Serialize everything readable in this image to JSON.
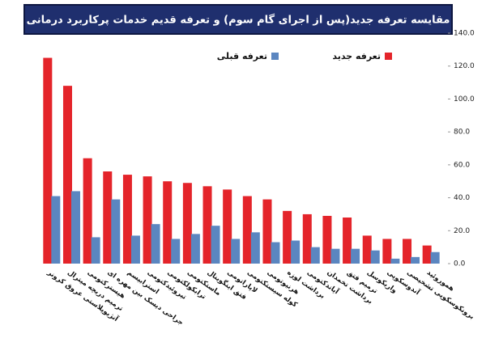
{
  "chart_data": {
    "type": "bar",
    "title": "مقایسه تعرفه جدید(پس از اجرای گام سوم) و تعرفه قدیم خدمات پرکاربرد درمانی",
    "categories": [
      "آنژیوپلاستی عروق کرونر",
      "ترمیم دریچه میترال",
      "هیسترکتومی",
      "جراحی دیسک بین مهره ای",
      "استرابیسم",
      "تیروئیدکتومی",
      "ترابکولکتومی",
      "ماستکتومی",
      "فتق اینگوینال",
      "لاپاراتومی",
      "کوله سیستکتومی",
      "هرنیوتومی",
      "برداشت لوزه",
      "آپاندکتومی",
      "برداشت تخمدان",
      "ترمیم فتق",
      "واریکوسل",
      "آندوسکوپی",
      "برونکوسکوپی تشخیصی",
      "هموروئید"
    ],
    "series": [
      {
        "name": "تعرفه جدید",
        "color": "#e4242a",
        "values": [
          125,
          108,
          64,
          56,
          54,
          53,
          50,
          49,
          47,
          45,
          41,
          39,
          32,
          30,
          29,
          28,
          17,
          15,
          15,
          11
        ]
      },
      {
        "name": "تعرفه قبلی",
        "color": "#5b86c0",
        "values": [
          41,
          44,
          16,
          39,
          17,
          24,
          15,
          18,
          23,
          15,
          19,
          13,
          14,
          10,
          9,
          9,
          8,
          3,
          4,
          7
        ]
      }
    ],
    "ylim": [
      0,
      140
    ],
    "yticks": [
      {
        "value": 0,
        "label": "0.0"
      },
      {
        "value": 20,
        "label": "20.0"
      },
      {
        "value": 40,
        "label": "40.0"
      },
      {
        "value": 60,
        "label": "60.0"
      },
      {
        "value": 80,
        "label": "80.0"
      },
      {
        "value": 100,
        "label": "100.0"
      },
      {
        "value": 120,
        "label": "120.0"
      },
      {
        "value": 140,
        "label": "140.0"
      }
    ],
    "grid": false
  }
}
